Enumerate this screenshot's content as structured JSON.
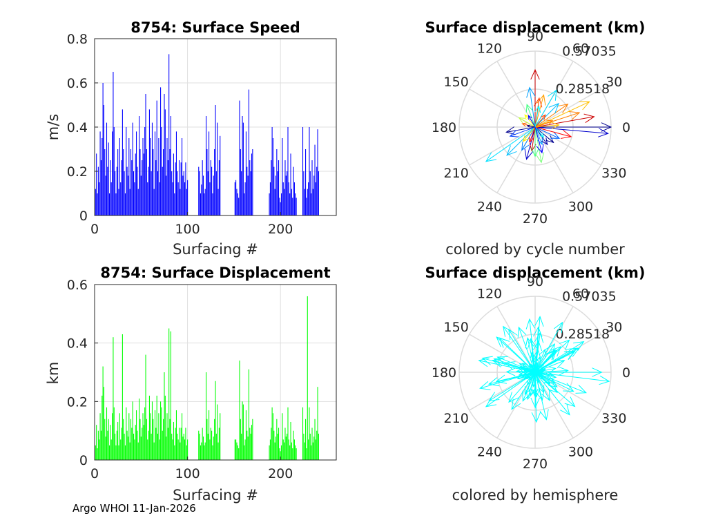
{
  "footer": "Argo WHOI 11-Jan-2026",
  "chart_data": [
    {
      "id": "speed",
      "type": "bar",
      "title": "8754: Surface Speed",
      "xlabel": "Surfacing #",
      "ylabel": "m/s",
      "xlim": [
        0,
        260
      ],
      "ylim": [
        0,
        0.8
      ],
      "xticks": [
        0,
        100,
        200
      ],
      "yticks": [
        0,
        0.2,
        0.4,
        0.6,
        0.8
      ],
      "ytick_labels": [
        "0",
        "0.2",
        "0.4",
        "0.6",
        "0.8"
      ],
      "color": "#0000ff",
      "x": [
        1,
        2,
        3,
        4,
        5,
        6,
        7,
        8,
        9,
        10,
        11,
        12,
        13,
        14,
        15,
        16,
        17,
        18,
        19,
        20,
        21,
        22,
        23,
        24,
        25,
        26,
        27,
        28,
        29,
        30,
        31,
        32,
        33,
        34,
        35,
        36,
        37,
        38,
        39,
        40,
        41,
        42,
        43,
        44,
        45,
        46,
        47,
        48,
        49,
        50,
        51,
        52,
        53,
        54,
        55,
        56,
        57,
        58,
        59,
        60,
        61,
        62,
        63,
        64,
        65,
        66,
        67,
        68,
        69,
        70,
        71,
        72,
        73,
        74,
        75,
        76,
        77,
        78,
        79,
        80,
        81,
        82,
        83,
        84,
        85,
        86,
        87,
        88,
        89,
        90,
        91,
        92,
        93,
        94,
        95,
        96,
        97,
        98,
        99,
        100,
        112,
        113,
        114,
        115,
        116,
        117,
        118,
        119,
        120,
        121,
        122,
        123,
        124,
        125,
        126,
        127,
        128,
        129,
        130,
        131,
        132,
        133,
        134,
        135,
        151,
        152,
        153,
        154,
        155,
        156,
        157,
        158,
        159,
        160,
        161,
        162,
        163,
        164,
        165,
        166,
        167,
        168,
        169,
        170,
        188,
        189,
        190,
        191,
        192,
        193,
        194,
        195,
        196,
        197,
        198,
        199,
        200,
        201,
        202,
        203,
        204,
        205,
        206,
        207,
        208,
        209,
        210,
        211,
        212,
        213,
        214,
        215,
        216,
        217,
        224,
        225,
        226,
        227,
        228,
        229,
        230,
        231,
        232,
        233,
        234,
        235,
        236,
        237,
        238,
        239,
        240,
        241
      ],
      "values": [
        0.12,
        0.28,
        0.1,
        0.22,
        0.15,
        0.38,
        0.25,
        0.35,
        0.6,
        0.5,
        0.3,
        0.18,
        0.42,
        0.22,
        0.33,
        0.1,
        0.25,
        0.15,
        0.38,
        0.65,
        0.4,
        0.2,
        0.1,
        0.22,
        0.3,
        0.12,
        0.35,
        0.15,
        0.25,
        0.48,
        0.3,
        0.2,
        0.1,
        0.4,
        0.22,
        0.18,
        0.35,
        0.12,
        0.3,
        0.25,
        0.42,
        0.2,
        0.15,
        0.28,
        0.38,
        0.22,
        0.12,
        0.45,
        0.3,
        0.18,
        0.25,
        0.35,
        0.28,
        0.4,
        0.55,
        0.3,
        0.15,
        0.22,
        0.48,
        0.35,
        0.2,
        0.42,
        0.3,
        0.12,
        0.38,
        0.25,
        0.52,
        0.2,
        0.35,
        0.15,
        0.58,
        0.4,
        0.22,
        0.3,
        0.55,
        0.48,
        0.18,
        0.35,
        0.25,
        0.73,
        0.3,
        0.45,
        0.2,
        0.15,
        0.28,
        0.1,
        0.24,
        0.38,
        0.2,
        0.15,
        0.25,
        0.12,
        0.24,
        0.35,
        0.18,
        0.2,
        0.15,
        0.24,
        0.12,
        0.16,
        0.22,
        0.2,
        0.1,
        0.14,
        0.25,
        0.18,
        0.1,
        0.12,
        0.45,
        0.3,
        0.2,
        0.38,
        0.15,
        0.25,
        0.22,
        0.1,
        0.18,
        0.3,
        0.5,
        0.2,
        0.42,
        0.12,
        0.25,
        0.36,
        0.15,
        0.16,
        0.12,
        0.1,
        0.08,
        0.52,
        0.3,
        0.2,
        0.45,
        0.42,
        0.1,
        0.15,
        0.38,
        0.22,
        0.18,
        0.57,
        0.25,
        0.2,
        0.28,
        0.3,
        0.1,
        0.15,
        0.25,
        0.4,
        0.35,
        0.22,
        0.12,
        0.18,
        0.3,
        0.2,
        0.25,
        0.08,
        0.06,
        0.1,
        0.35,
        0.15,
        0.12,
        0.25,
        0.18,
        0.2,
        0.4,
        0.15,
        0.1,
        0.28,
        0.12,
        0.08,
        0.22,
        0.15,
        0.1,
        0.08,
        0.4,
        0.2,
        0.12,
        0.3,
        0.08,
        0.12,
        0.15,
        0.4,
        0.2,
        0.1,
        0.25,
        0.12,
        0.18,
        0.32,
        0.15,
        0.22,
        0.39,
        0.2
      ],
      "notes": "bars are estimated from the image"
    },
    {
      "id": "displacement",
      "type": "bar",
      "title": "8754: Surface Displacement",
      "xlabel": "Surfacing #",
      "ylabel": "km",
      "xlim": [
        0,
        260
      ],
      "ylim": [
        0,
        0.6
      ],
      "xticks": [
        0,
        100,
        200
      ],
      "yticks": [
        0,
        0.2,
        0.4,
        0.6
      ],
      "ytick_labels": [
        "0",
        "0.2",
        "0.4",
        "0.6"
      ],
      "color": "#00ff00",
      "x": [
        1,
        2,
        3,
        4,
        5,
        6,
        7,
        8,
        9,
        10,
        11,
        12,
        13,
        14,
        15,
        16,
        17,
        18,
        19,
        20,
        21,
        22,
        23,
        24,
        25,
        26,
        27,
        28,
        29,
        30,
        31,
        32,
        33,
        34,
        35,
        36,
        37,
        38,
        39,
        40,
        41,
        42,
        43,
        44,
        45,
        46,
        47,
        48,
        49,
        50,
        51,
        52,
        53,
        54,
        55,
        56,
        57,
        58,
        59,
        60,
        61,
        62,
        63,
        64,
        65,
        66,
        67,
        68,
        69,
        70,
        71,
        72,
        73,
        74,
        75,
        76,
        77,
        78,
        79,
        80,
        81,
        82,
        83,
        84,
        85,
        86,
        87,
        88,
        89,
        90,
        91,
        92,
        93,
        94,
        95,
        96,
        97,
        98,
        99,
        100,
        112,
        113,
        114,
        115,
        116,
        117,
        118,
        119,
        120,
        121,
        122,
        123,
        124,
        125,
        126,
        127,
        128,
        129,
        130,
        131,
        132,
        133,
        134,
        135,
        151,
        152,
        153,
        154,
        155,
        156,
        157,
        158,
        159,
        160,
        161,
        162,
        163,
        164,
        165,
        166,
        167,
        168,
        169,
        170,
        188,
        189,
        190,
        191,
        192,
        193,
        194,
        195,
        196,
        197,
        198,
        199,
        200,
        201,
        202,
        203,
        204,
        205,
        206,
        207,
        208,
        209,
        210,
        211,
        212,
        213,
        214,
        215,
        216,
        217,
        224,
        225,
        226,
        227,
        228,
        229,
        230,
        231,
        232,
        233,
        234,
        235,
        236,
        237,
        238,
        239,
        240,
        241
      ],
      "values": [
        0.05,
        0.12,
        0.04,
        0.1,
        0.07,
        0.16,
        0.1,
        0.22,
        0.32,
        0.25,
        0.14,
        0.08,
        0.18,
        0.1,
        0.14,
        0.05,
        0.12,
        0.07,
        0.16,
        0.42,
        0.18,
        0.09,
        0.05,
        0.1,
        0.13,
        0.05,
        0.16,
        0.07,
        0.11,
        0.43,
        0.14,
        0.09,
        0.05,
        0.18,
        0.1,
        0.08,
        0.16,
        0.06,
        0.14,
        0.11,
        0.2,
        0.09,
        0.07,
        0.12,
        0.17,
        0.1,
        0.06,
        0.21,
        0.14,
        0.08,
        0.11,
        0.16,
        0.12,
        0.18,
        0.36,
        0.14,
        0.07,
        0.1,
        0.22,
        0.16,
        0.09,
        0.2,
        0.14,
        0.06,
        0.17,
        0.11,
        0.22,
        0.09,
        0.16,
        0.07,
        0.2,
        0.18,
        0.1,
        0.14,
        0.3,
        0.22,
        0.08,
        0.16,
        0.11,
        0.45,
        0.14,
        0.44,
        0.09,
        0.07,
        0.13,
        0.05,
        0.11,
        0.17,
        0.09,
        0.07,
        0.11,
        0.06,
        0.11,
        0.16,
        0.08,
        0.09,
        0.07,
        0.11,
        0.05,
        0.07,
        0.1,
        0.09,
        0.05,
        0.06,
        0.11,
        0.08,
        0.05,
        0.06,
        0.3,
        0.14,
        0.09,
        0.17,
        0.07,
        0.11,
        0.1,
        0.05,
        0.08,
        0.14,
        0.27,
        0.09,
        0.19,
        0.06,
        0.11,
        0.16,
        0.07,
        0.07,
        0.06,
        0.05,
        0.04,
        0.34,
        0.14,
        0.09,
        0.2,
        0.19,
        0.05,
        0.07,
        0.17,
        0.1,
        0.08,
        0.31,
        0.11,
        0.09,
        0.12,
        0.14,
        0.05,
        0.07,
        0.11,
        0.18,
        0.16,
        0.1,
        0.06,
        0.08,
        0.14,
        0.09,
        0.11,
        0.04,
        0.03,
        0.05,
        0.16,
        0.07,
        0.06,
        0.11,
        0.08,
        0.09,
        0.18,
        0.07,
        0.05,
        0.13,
        0.06,
        0.04,
        0.1,
        0.07,
        0.05,
        0.04,
        0.18,
        0.09,
        0.06,
        0.14,
        0.04,
        0.56,
        0.07,
        0.18,
        0.09,
        0.05,
        0.11,
        0.06,
        0.08,
        0.14,
        0.07,
        0.1,
        0.25,
        0.09
      ],
      "notes": "bars are estimated from the image"
    },
    {
      "id": "compass-cycle",
      "type": "polar-compass",
      "title": "Surface displacement (km)",
      "caption": "colored by cycle number",
      "rmax": 0.57035,
      "ring_labels": [
        "0.28518",
        "0.57035"
      ],
      "angle_labels": [
        "0",
        "30",
        "60",
        "90",
        "120",
        "150",
        "180",
        "210",
        "240",
        "270",
        "300",
        "330"
      ],
      "color_mode": "cycle",
      "vectors": [
        {
          "angle": 0,
          "r": 0.57,
          "color": "#00008f"
        },
        {
          "angle": 355,
          "r": 0.55,
          "color": "#0000cc"
        },
        {
          "angle": 10,
          "r": 0.45,
          "color": "#cc0000"
        },
        {
          "angle": 18,
          "r": 0.35,
          "color": "#ff8000"
        },
        {
          "angle": 25,
          "r": 0.45,
          "color": "#ffc000"
        },
        {
          "angle": 35,
          "r": 0.3,
          "color": "#ff8000"
        },
        {
          "angle": 45,
          "r": 0.25,
          "color": "#00c0ff"
        },
        {
          "angle": 60,
          "r": 0.32,
          "color": "#00e0ff"
        },
        {
          "angle": 75,
          "r": 0.25,
          "color": "#ffa000"
        },
        {
          "angle": 82,
          "r": 0.22,
          "color": "#ff4000"
        },
        {
          "angle": 90,
          "r": 0.43,
          "color": "#cc0000"
        },
        {
          "angle": 98,
          "r": 0.3,
          "color": "#00a0ff"
        },
        {
          "angle": 110,
          "r": 0.18,
          "color": "#40ff80"
        },
        {
          "angle": 130,
          "r": 0.12,
          "color": "#ffff00"
        },
        {
          "angle": 150,
          "r": 0.14,
          "color": "#c0ff40"
        },
        {
          "angle": 165,
          "r": 0.1,
          "color": "#ff6000"
        },
        {
          "angle": 190,
          "r": 0.22,
          "color": "#00008f"
        },
        {
          "angle": 200,
          "r": 0.2,
          "color": "#0040ff"
        },
        {
          "angle": 215,
          "r": 0.45,
          "color": "#00e0ff"
        },
        {
          "angle": 225,
          "r": 0.3,
          "color": "#00c0ff"
        },
        {
          "angle": 240,
          "r": 0.2,
          "color": "#0080ff"
        },
        {
          "angle": 255,
          "r": 0.25,
          "color": "#0000cc"
        },
        {
          "angle": 262,
          "r": 0.18,
          "color": "#cc0000"
        },
        {
          "angle": 270,
          "r": 0.22,
          "color": "#40ff80"
        },
        {
          "angle": 280,
          "r": 0.27,
          "color": "#80ff80"
        },
        {
          "angle": 292,
          "r": 0.14,
          "color": "#00a0ff"
        },
        {
          "angle": 305,
          "r": 0.16,
          "color": "#0000aa"
        },
        {
          "angle": 320,
          "r": 0.18,
          "color": "#00008f"
        },
        {
          "angle": 335,
          "r": 0.2,
          "color": "#0060ff"
        },
        {
          "angle": 345,
          "r": 0.28,
          "color": "#ff0000"
        },
        {
          "angle": 5,
          "r": 0.18,
          "color": "#ffc000"
        },
        {
          "angle": 20,
          "r": 0.14,
          "color": "#ff8000"
        },
        {
          "angle": 50,
          "r": 0.12,
          "color": "#ff4000"
        },
        {
          "angle": 120,
          "r": 0.1,
          "color": "#0000ff"
        },
        {
          "angle": 230,
          "r": 0.14,
          "color": "#ffe000"
        },
        {
          "angle": 250,
          "r": 0.12,
          "color": "#ff0000"
        },
        {
          "angle": 310,
          "r": 0.1,
          "color": "#00ffff"
        },
        {
          "angle": 170,
          "r": 0.06,
          "color": "#00008f"
        },
        {
          "angle": 80,
          "r": 0.16,
          "color": "#00ffff"
        },
        {
          "angle": 285,
          "r": 0.2,
          "color": "#0000ff"
        }
      ]
    },
    {
      "id": "compass-hemisphere",
      "type": "polar-compass",
      "title": "Surface displacement (km)",
      "caption": "colored by hemisphere",
      "rmax": 0.57035,
      "ring_labels": [
        "0.28518",
        "0.57035"
      ],
      "angle_labels": [
        "0",
        "30",
        "60",
        "90",
        "120",
        "150",
        "180",
        "210",
        "240",
        "270",
        "300",
        "330"
      ],
      "color_mode": "single",
      "single_color": "#00ffff"
    }
  ]
}
